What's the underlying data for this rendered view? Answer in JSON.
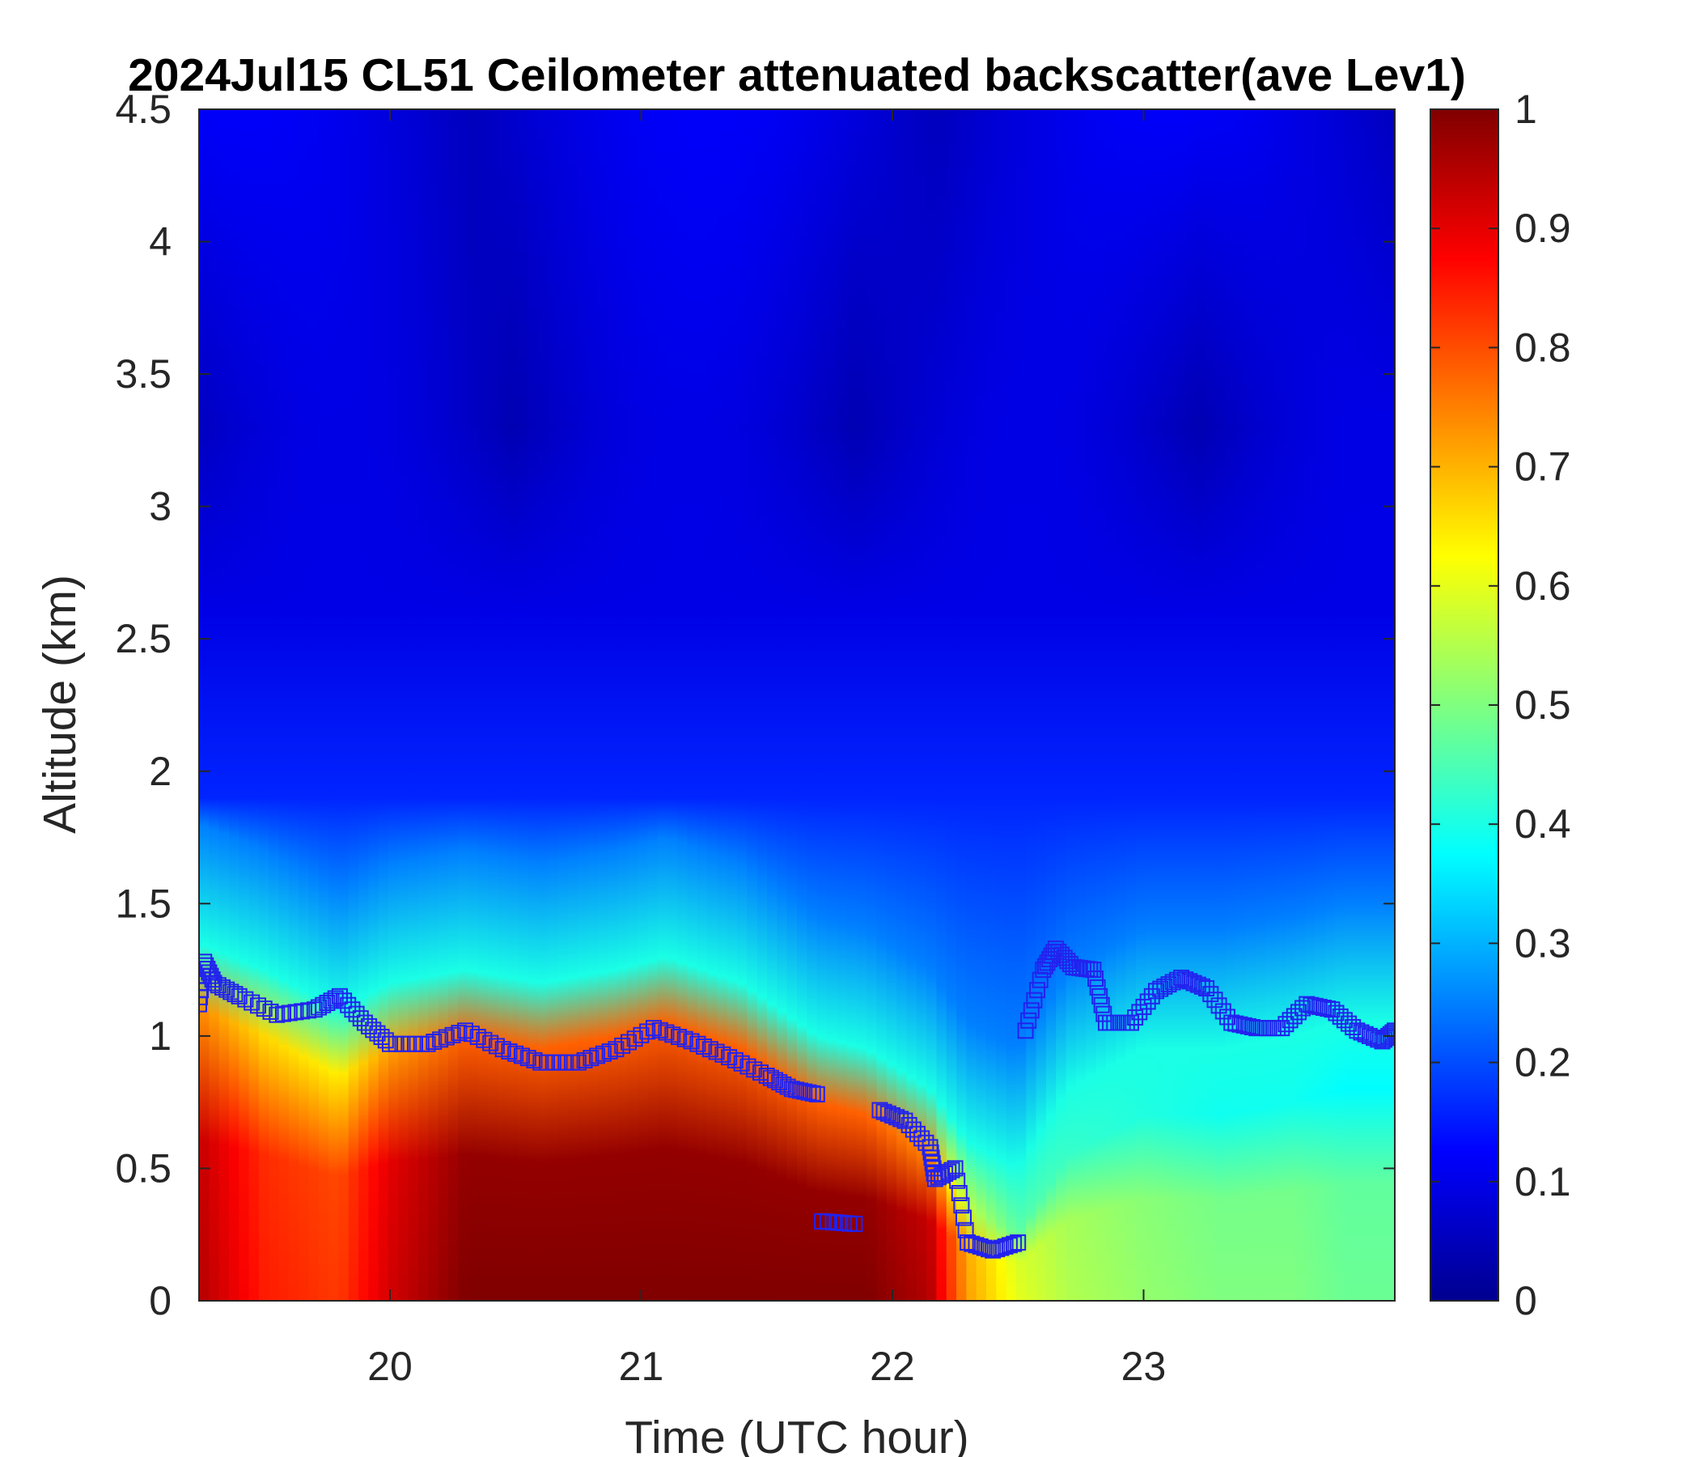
{
  "chart_data": {
    "type": "heatmap",
    "title": "2024Jul15 CL51 Ceilometer attenuated backscatter(ave Lev1)",
    "xlabel": "Time (UTC hour)",
    "ylabel": "Altitude (km)",
    "xlim": [
      19.24,
      24.0
    ],
    "ylim": [
      0,
      4.5
    ],
    "xticks": [
      20,
      21,
      22,
      23
    ],
    "xtick_labels": [
      "20",
      "21",
      "22",
      "23"
    ],
    "yticks": [
      0,
      0.5,
      1,
      1.5,
      2,
      2.5,
      3,
      3.5,
      4,
      4.5
    ],
    "ytick_labels": [
      "0",
      "0.5",
      "1",
      "1.5",
      "2",
      "2.5",
      "3",
      "3.5",
      "4",
      "4.5"
    ],
    "colorbar": {
      "colormap": "jet",
      "range": [
        0,
        1
      ],
      "ticks": [
        0,
        0.1,
        0.2,
        0.3,
        0.4,
        0.5,
        0.6,
        0.7,
        0.8,
        0.9,
        1
      ],
      "tick_labels": [
        "0",
        "0.1",
        "0.2",
        "0.3",
        "0.4",
        "0.5",
        "0.6",
        "0.7",
        "0.8",
        "0.9",
        "1"
      ]
    },
    "profile_times": [
      19.24,
      19.5,
      19.8,
      20.0,
      20.3,
      20.6,
      20.9,
      21.1,
      21.4,
      21.7,
      21.9,
      22.15,
      22.3,
      22.5,
      22.7,
      23.0,
      23.3,
      23.6,
      23.8,
      24.0
    ],
    "profile_mixed_top_km": [
      1.1,
      1.0,
      0.85,
      0.95,
      1.0,
      0.95,
      1.0,
      1.05,
      0.95,
      0.75,
      0.7,
      0.55,
      0.35,
      0.25,
      0.55,
      0.7,
      0.7,
      0.75,
      0.8,
      0.8
    ],
    "profile_peak_value": [
      0.95,
      0.85,
      0.82,
      0.92,
      1.0,
      1.0,
      1.0,
      1.0,
      1.0,
      1.0,
      1.0,
      0.95,
      0.72,
      0.6,
      0.55,
      0.52,
      0.5,
      0.5,
      0.48,
      0.48
    ],
    "boundary_layer_height_series": {
      "marker": "square",
      "color": "#2222ee",
      "x": [
        19.24,
        19.26,
        19.3,
        19.4,
        19.55,
        19.7,
        19.8,
        19.9,
        20.0,
        20.15,
        20.3,
        20.45,
        20.6,
        20.75,
        20.9,
        21.05,
        21.2,
        21.35,
        21.5,
        21.6,
        21.7,
        21.72,
        21.85,
        21.95,
        22.05,
        22.15,
        22.17,
        22.25,
        22.3,
        22.4,
        22.5,
        22.53,
        22.6,
        22.65,
        22.72,
        22.8,
        22.85,
        22.95,
        23.05,
        23.15,
        23.25,
        23.35,
        23.45,
        23.55,
        23.65,
        23.75,
        23.85,
        23.95,
        24.0
      ],
      "y": [
        1.12,
        1.28,
        1.2,
        1.15,
        1.08,
        1.1,
        1.15,
        1.05,
        0.97,
        0.97,
        1.02,
        0.95,
        0.9,
        0.9,
        0.95,
        1.03,
        0.98,
        0.92,
        0.85,
        0.8,
        0.78,
        0.3,
        0.29,
        0.72,
        0.68,
        0.58,
        0.46,
        0.5,
        0.22,
        0.19,
        0.22,
        1.02,
        1.25,
        1.33,
        1.26,
        1.25,
        1.05,
        1.05,
        1.17,
        1.22,
        1.18,
        1.05,
        1.03,
        1.03,
        1.12,
        1.1,
        1.02,
        0.98,
        1.02
      ]
    }
  }
}
